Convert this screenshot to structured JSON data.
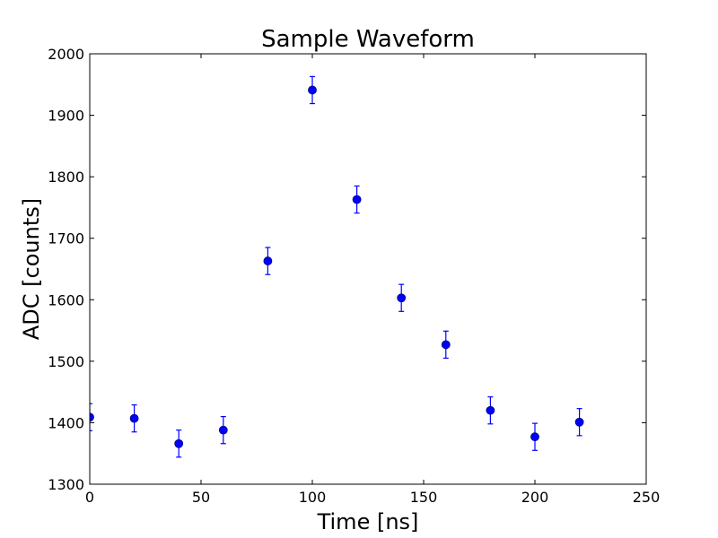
{
  "chart_data": {
    "type": "scatter",
    "title": "Sample Waveform",
    "xlabel": "Time [ns]",
    "ylabel": "ADC [counts]",
    "xlim": [
      0,
      250
    ],
    "ylim": [
      1300,
      2000
    ],
    "xticks": [
      0,
      50,
      100,
      150,
      200,
      250
    ],
    "yticks": [
      1300,
      1400,
      1500,
      1600,
      1700,
      1800,
      1900,
      2000
    ],
    "grid": false,
    "marker_color": "#0000ff",
    "series": [
      {
        "x": [
          0,
          20,
          40,
          60,
          80,
          100,
          120,
          140,
          160,
          180,
          200,
          220
        ],
        "y": [
          1409,
          1407,
          1366,
          1388,
          1663,
          1941,
          1763,
          1603,
          1527,
          1420,
          1377,
          1401
        ],
        "yerr": [
          22,
          22,
          22,
          22,
          22,
          22,
          22,
          22,
          22,
          22,
          22,
          22
        ]
      }
    ]
  }
}
